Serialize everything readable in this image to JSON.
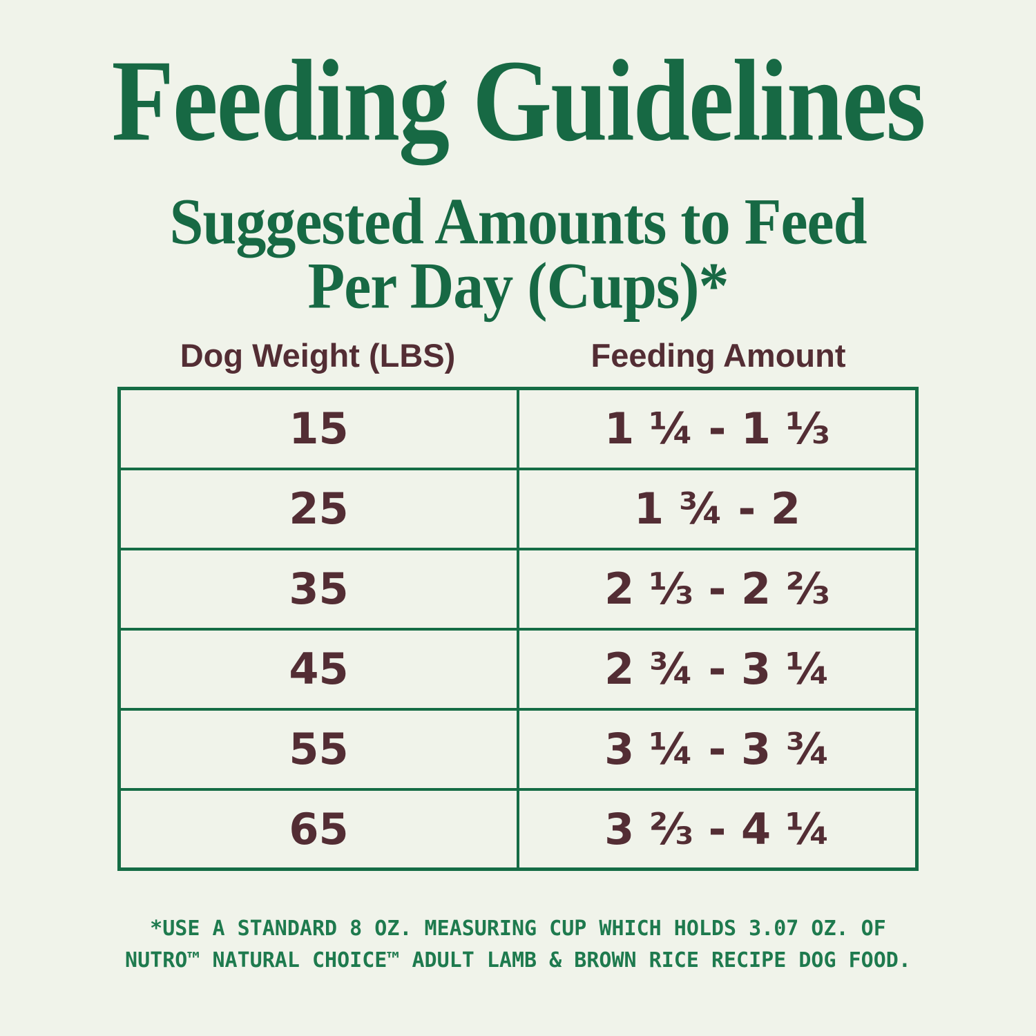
{
  "title": "Feeding Guidelines",
  "subtitle": {
    "line1": "Suggested Amounts to Feed",
    "line2": "Per Day (Cups)*"
  },
  "table": {
    "columns": [
      "Dog Weight (LBS)",
      "Feeding Amount"
    ],
    "rows": [
      {
        "weight": "15",
        "amount": "1 ¼ - 1 ⅓"
      },
      {
        "weight": "25",
        "amount": "1 ¾ - 2"
      },
      {
        "weight": "35",
        "amount": "2 ⅓ - 2 ⅔"
      },
      {
        "weight": "45",
        "amount": "2 ¾ - 3 ¼"
      },
      {
        "weight": "55",
        "amount": "3 ¼ - 3 ¾"
      },
      {
        "weight": "65",
        "amount": "3 ⅔ - 4 ¼"
      }
    ]
  },
  "footnote": {
    "line1": "*USE A STANDARD 8 OZ. MEASURING CUP WHICH HOLDS 3.07 OZ. OF",
    "line2": "NUTRO™ NATURAL CHOICE™ ADULT LAMB & BROWN RICE RECIPE DOG FOOD."
  },
  "colors": {
    "background": "#f0f3ea",
    "heading-green": "#176944",
    "footnote-green": "#1e7a4e",
    "table-border-green": "#156c45",
    "text-maroon": "#532d34"
  }
}
